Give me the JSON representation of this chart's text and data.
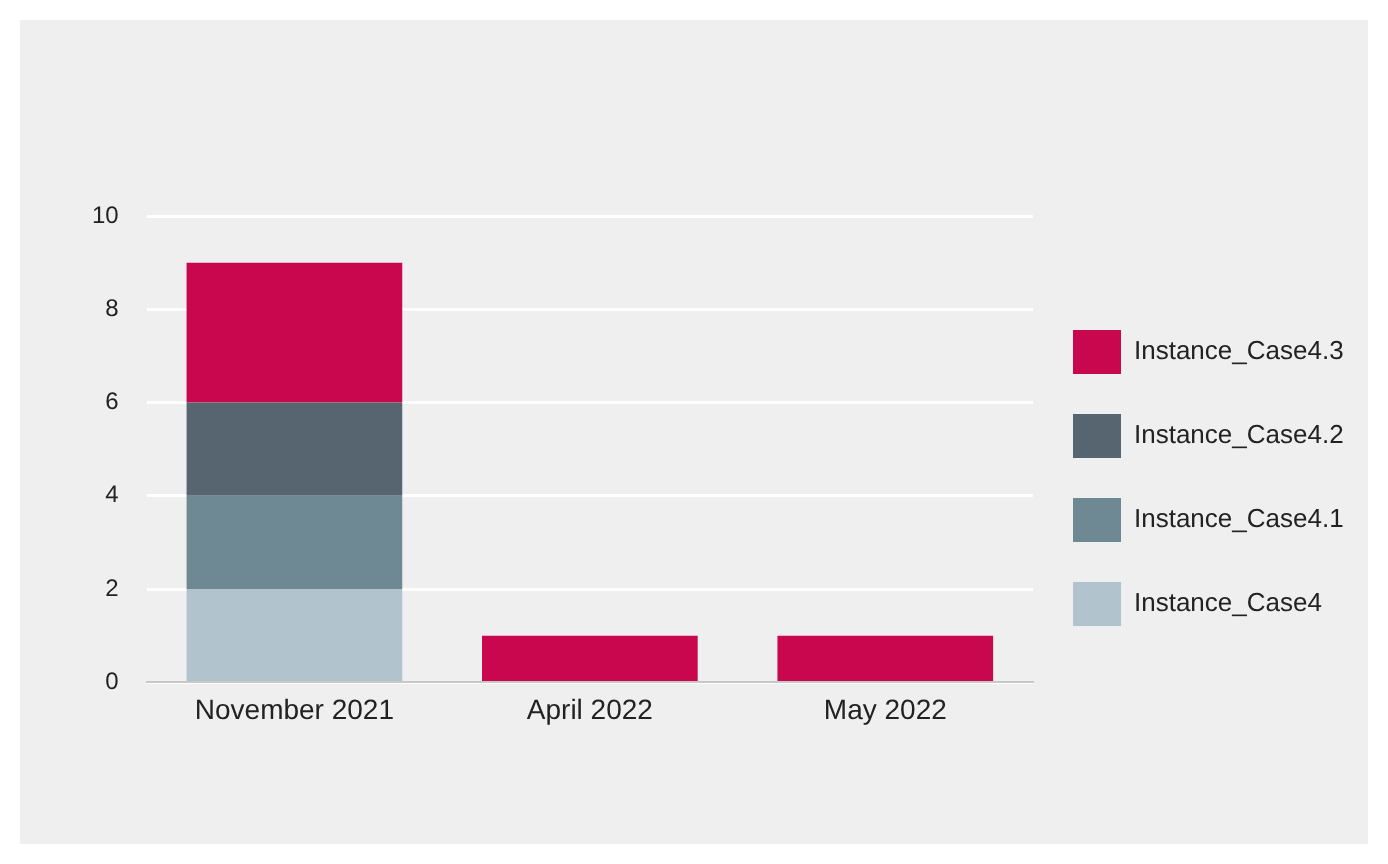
{
  "chart_data": {
    "type": "bar",
    "stacked": true,
    "categories": [
      "November 2021",
      "April 2022",
      "May 2022"
    ],
    "series": [
      {
        "name": "Instance_Case4",
        "color": "#b1c3cc",
        "values": [
          2,
          null,
          null
        ]
      },
      {
        "name": "Instance_Case4.1",
        "color": "#6f8994",
        "values": [
          2,
          null,
          null
        ]
      },
      {
        "name": "Instance_Case4.2",
        "color": "#56656f",
        "values": [
          2,
          null,
          null
        ]
      },
      {
        "name": "Instance_Case4.3",
        "color": "#c8074e",
        "values": [
          3,
          1,
          1
        ]
      }
    ],
    "ylim": [
      0,
      10
    ],
    "yticks": [
      0,
      2,
      4,
      6,
      8,
      10
    ],
    "grid": "y",
    "legend": "right"
  }
}
